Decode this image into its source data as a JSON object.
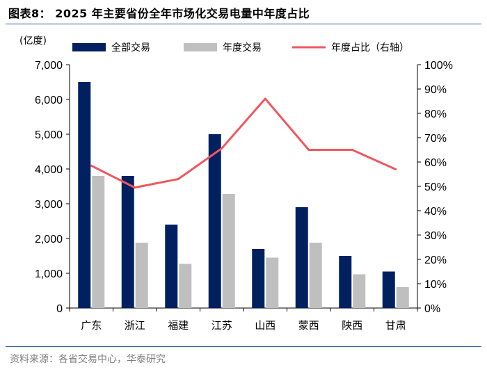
{
  "figure": {
    "title": "图表8：  2025 年主要省份全年市场化交易电量中年度占比",
    "source": "资料来源：各省交易中心，华泰研究"
  },
  "chart_data": {
    "type": "bar",
    "title": "2025 年主要省份全年市场化交易电量中年度占比",
    "unit_label": "(亿度)",
    "categories": [
      "广东",
      "浙江",
      "福建",
      "江苏",
      "山西",
      "蒙西",
      "陕西",
      "甘肃"
    ],
    "series": [
      {
        "name": "全部交易",
        "kind": "bar",
        "axis": "left",
        "color": "#002060",
        "values": [
          6500,
          3800,
          2400,
          5000,
          1700,
          2900,
          1500,
          1050
        ]
      },
      {
        "name": "年度交易",
        "kind": "bar",
        "axis": "left",
        "color": "#bfbfbf",
        "values": [
          3800,
          1880,
          1270,
          3280,
          1450,
          1880,
          970,
          600
        ]
      },
      {
        "name": "年度占比（右轴）",
        "kind": "line",
        "axis": "right",
        "color": "#f0575d",
        "values": [
          58.5,
          49.5,
          53,
          65.6,
          86,
          65,
          65,
          57
        ]
      }
    ],
    "y_left": {
      "min": 0,
      "max": 7000,
      "ticks": [
        0,
        1000,
        2000,
        3000,
        4000,
        5000,
        6000,
        7000
      ],
      "tick_labels": [
        "0",
        "1,000",
        "2,000",
        "3,000",
        "4,000",
        "5,000",
        "6,000",
        "7,000"
      ]
    },
    "y_right": {
      "min": 0,
      "max": 100,
      "ticks": [
        0,
        10,
        20,
        30,
        40,
        50,
        60,
        70,
        80,
        90,
        100
      ],
      "tick_labels": [
        "0%",
        "10%",
        "20%",
        "30%",
        "40%",
        "50%",
        "60%",
        "70%",
        "80%",
        "90%",
        "100%"
      ]
    },
    "grid": false,
    "legend_position": "top"
  }
}
